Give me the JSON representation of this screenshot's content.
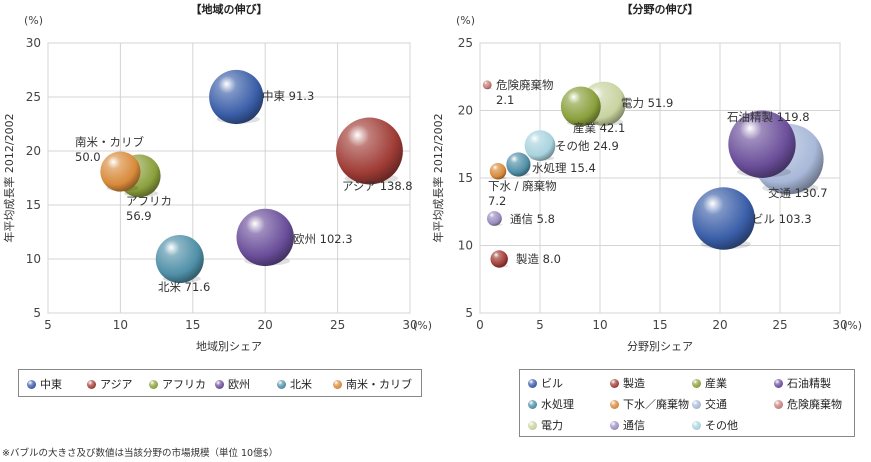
{
  "footnote": "※バブルの大きさ及び数値は当該分野の市場規模（単位 10億$）",
  "chart_data": [
    {
      "type": "scatter",
      "title": "【地域の伸び】",
      "xlabel": "地域別シェア",
      "ylabel": "年平均成長率 2012/2002",
      "unit_label": "(%)",
      "xlim": [
        5,
        30
      ],
      "ylim": [
        5,
        30
      ],
      "xticks": [
        "5",
        "10",
        "15",
        "20",
        "25",
        "30"
      ],
      "yticks": [
        "5",
        "10",
        "15",
        "20",
        "25",
        "30"
      ],
      "grid": true,
      "legend_position": "bottom",
      "points": [
        {
          "name": "中東",
          "x": 18,
          "y": 25,
          "size": 91.3,
          "label_lines": [
            "中東 91.3"
          ],
          "color": "#3a5ea8"
        },
        {
          "name": "アジア",
          "x": 27.2,
          "y": 20,
          "size": 138.8,
          "label_lines": [
            "アジア 138.8"
          ],
          "color": "#a03c36"
        },
        {
          "name": "アフリカ",
          "x": 11.3,
          "y": 17.7,
          "size": 56.9,
          "label_lines": [
            "アフリカ",
            "56.9"
          ],
          "color": "#8aa03c"
        },
        {
          "name": "欧州",
          "x": 20,
          "y": 12,
          "size": 102.3,
          "label_lines": [
            "欧州 102.3"
          ],
          "color": "#6a4e9a"
        },
        {
          "name": "北米",
          "x": 14.1,
          "y": 10,
          "size": 71.6,
          "label_lines": [
            "北米 71.6"
          ],
          "color": "#4f8fa8"
        },
        {
          "name": "南米・カリブ",
          "x": 10,
          "y": 18.1,
          "size": 50.0,
          "label_lines": [
            "南米・カリブ",
            "50.0"
          ],
          "color": "#d88a3a"
        }
      ],
      "legend": [
        "中東",
        "アジア",
        "アフリカ",
        "欧州",
        "北米",
        "南米・カリブ"
      ]
    },
    {
      "type": "scatter",
      "title": "【分野の伸び】",
      "xlabel": "分野別シェア",
      "ylabel": "年平均成長率 2012/2002",
      "unit_label": "(%)",
      "xlim": [
        0,
        30
      ],
      "ylim": [
        5,
        25
      ],
      "xticks": [
        "0",
        "5",
        "10",
        "15",
        "20",
        "25",
        "30"
      ],
      "yticks": [
        "5",
        "10",
        "15",
        "20",
        "25"
      ],
      "grid": true,
      "legend_position": "bottom",
      "points": [
        {
          "name": "ビル",
          "x": 20.3,
          "y": 12,
          "size": 103.3,
          "label_lines": [
            "ビル 103.3"
          ],
          "color": "#3a5ea8"
        },
        {
          "name": "製造",
          "x": 1.6,
          "y": 9,
          "size": 8.0,
          "label_lines": [
            "製造 8.0"
          ],
          "color": "#a03c36"
        },
        {
          "name": "産業",
          "x": 8.4,
          "y": 20.3,
          "size": 42.1,
          "label_lines": [
            "産業 42.1"
          ],
          "color": "#8aa03c"
        },
        {
          "name": "石油精製",
          "x": 23.5,
          "y": 17.5,
          "size": 119.8,
          "label_lines": [
            "石油精製 119.8"
          ],
          "color": "#6a4e9a"
        },
        {
          "name": "水処理",
          "x": 3.2,
          "y": 16,
          "size": 15.4,
          "label_lines": [
            "水処理 15.4"
          ],
          "color": "#4f8fa8"
        },
        {
          "name": "下水／廃棄物",
          "x": 1.5,
          "y": 15.5,
          "size": 7.2,
          "label_lines": [
            "下水 / 廃棄物",
            "7.2"
          ],
          "color": "#d88a3a"
        },
        {
          "name": "交通",
          "x": 25.7,
          "y": 16.4,
          "size": 130.7,
          "label_lines": [
            "交通 130.7"
          ],
          "color": "#a8b8d8"
        },
        {
          "name": "危険廃棄物",
          "x": 0.6,
          "y": 21.9,
          "size": 2.1,
          "label_lines": [
            "危険廃棄物",
            "2.1"
          ],
          "color": "#c87f7a"
        },
        {
          "name": "電力",
          "x": 10.3,
          "y": 20.5,
          "size": 51.9,
          "label_lines": [
            "電力 51.9"
          ],
          "color": "#c8d3a0"
        },
        {
          "name": "通信",
          "x": 1.2,
          "y": 12,
          "size": 5.8,
          "label_lines": [
            "通信 5.8"
          ],
          "color": "#9a8ec0"
        },
        {
          "name": "その他",
          "x": 5,
          "y": 17.4,
          "size": 24.9,
          "label_lines": [
            "その他 24.9"
          ],
          "color": "#a8d3de"
        }
      ],
      "legend": [
        "ビル",
        "製造",
        "産業",
        "石油精製",
        "水処理",
        "下水／廃棄物",
        "交通",
        "危険廃棄物",
        "電力",
        "通信",
        "その他"
      ]
    }
  ]
}
